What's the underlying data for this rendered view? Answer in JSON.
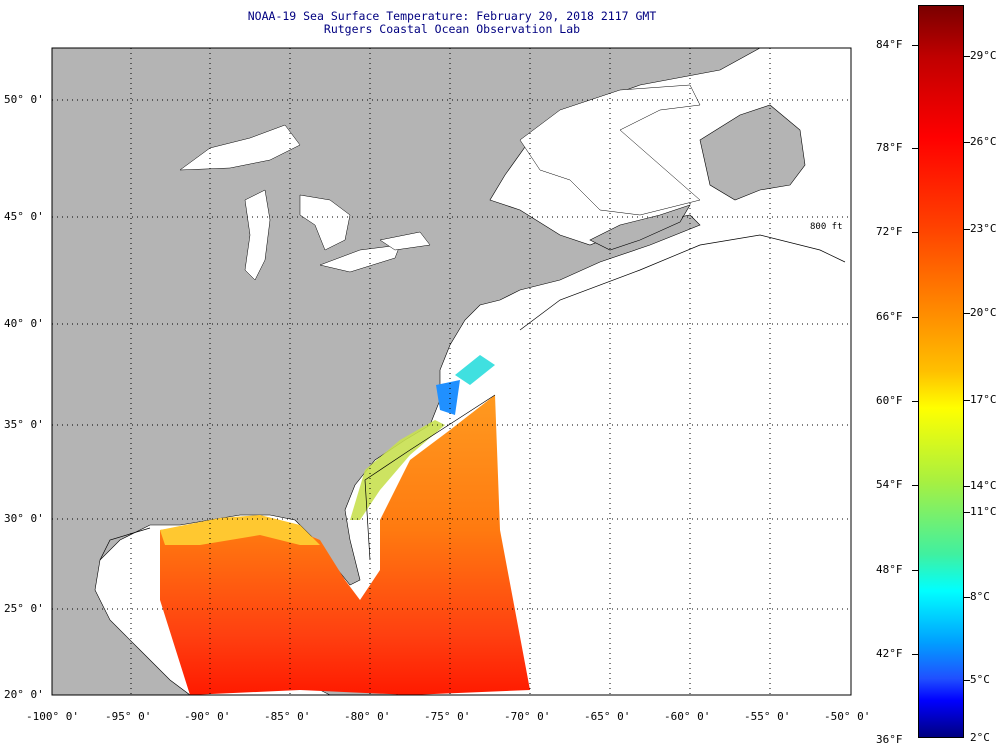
{
  "title": {
    "line1": "NOAA-19 Sea Surface Temperature:  February 20, 2018 2117 GMT",
    "line2": "Rutgers Coastal Ocean Observation Lab"
  },
  "lat_labels": [
    "50° 0'",
    "45° 0'",
    "40° 0'",
    "35° 0'",
    "30° 0'",
    "25° 0'",
    "20° 0'"
  ],
  "lon_labels": [
    "-100° 0'",
    "-95° 0'",
    "-90° 0'",
    "-85° 0'",
    "-80° 0'",
    "-75° 0'",
    "-70° 0'",
    "-65° 0'",
    "-60° 0'",
    "-55° 0'",
    "-50° 0'"
  ],
  "contour_labels": [
    "800 ft"
  ],
  "colorbar": {
    "fahrenheit": [
      "84°F",
      "78°F",
      "72°F",
      "66°F",
      "60°F",
      "54°F",
      "48°F",
      "42°F",
      "36°F"
    ],
    "celsius": [
      "29°C",
      "26°C",
      "23°C",
      "20°C",
      "17°C",
      "14°C",
      "11°C",
      "8°C",
      "5°C",
      "2°C"
    ],
    "min_f": 36,
    "max_f": 88
  },
  "colors": {
    "land": "#b4b4b4",
    "ocean_nodata": "#ffffff",
    "title": "#000080"
  }
}
